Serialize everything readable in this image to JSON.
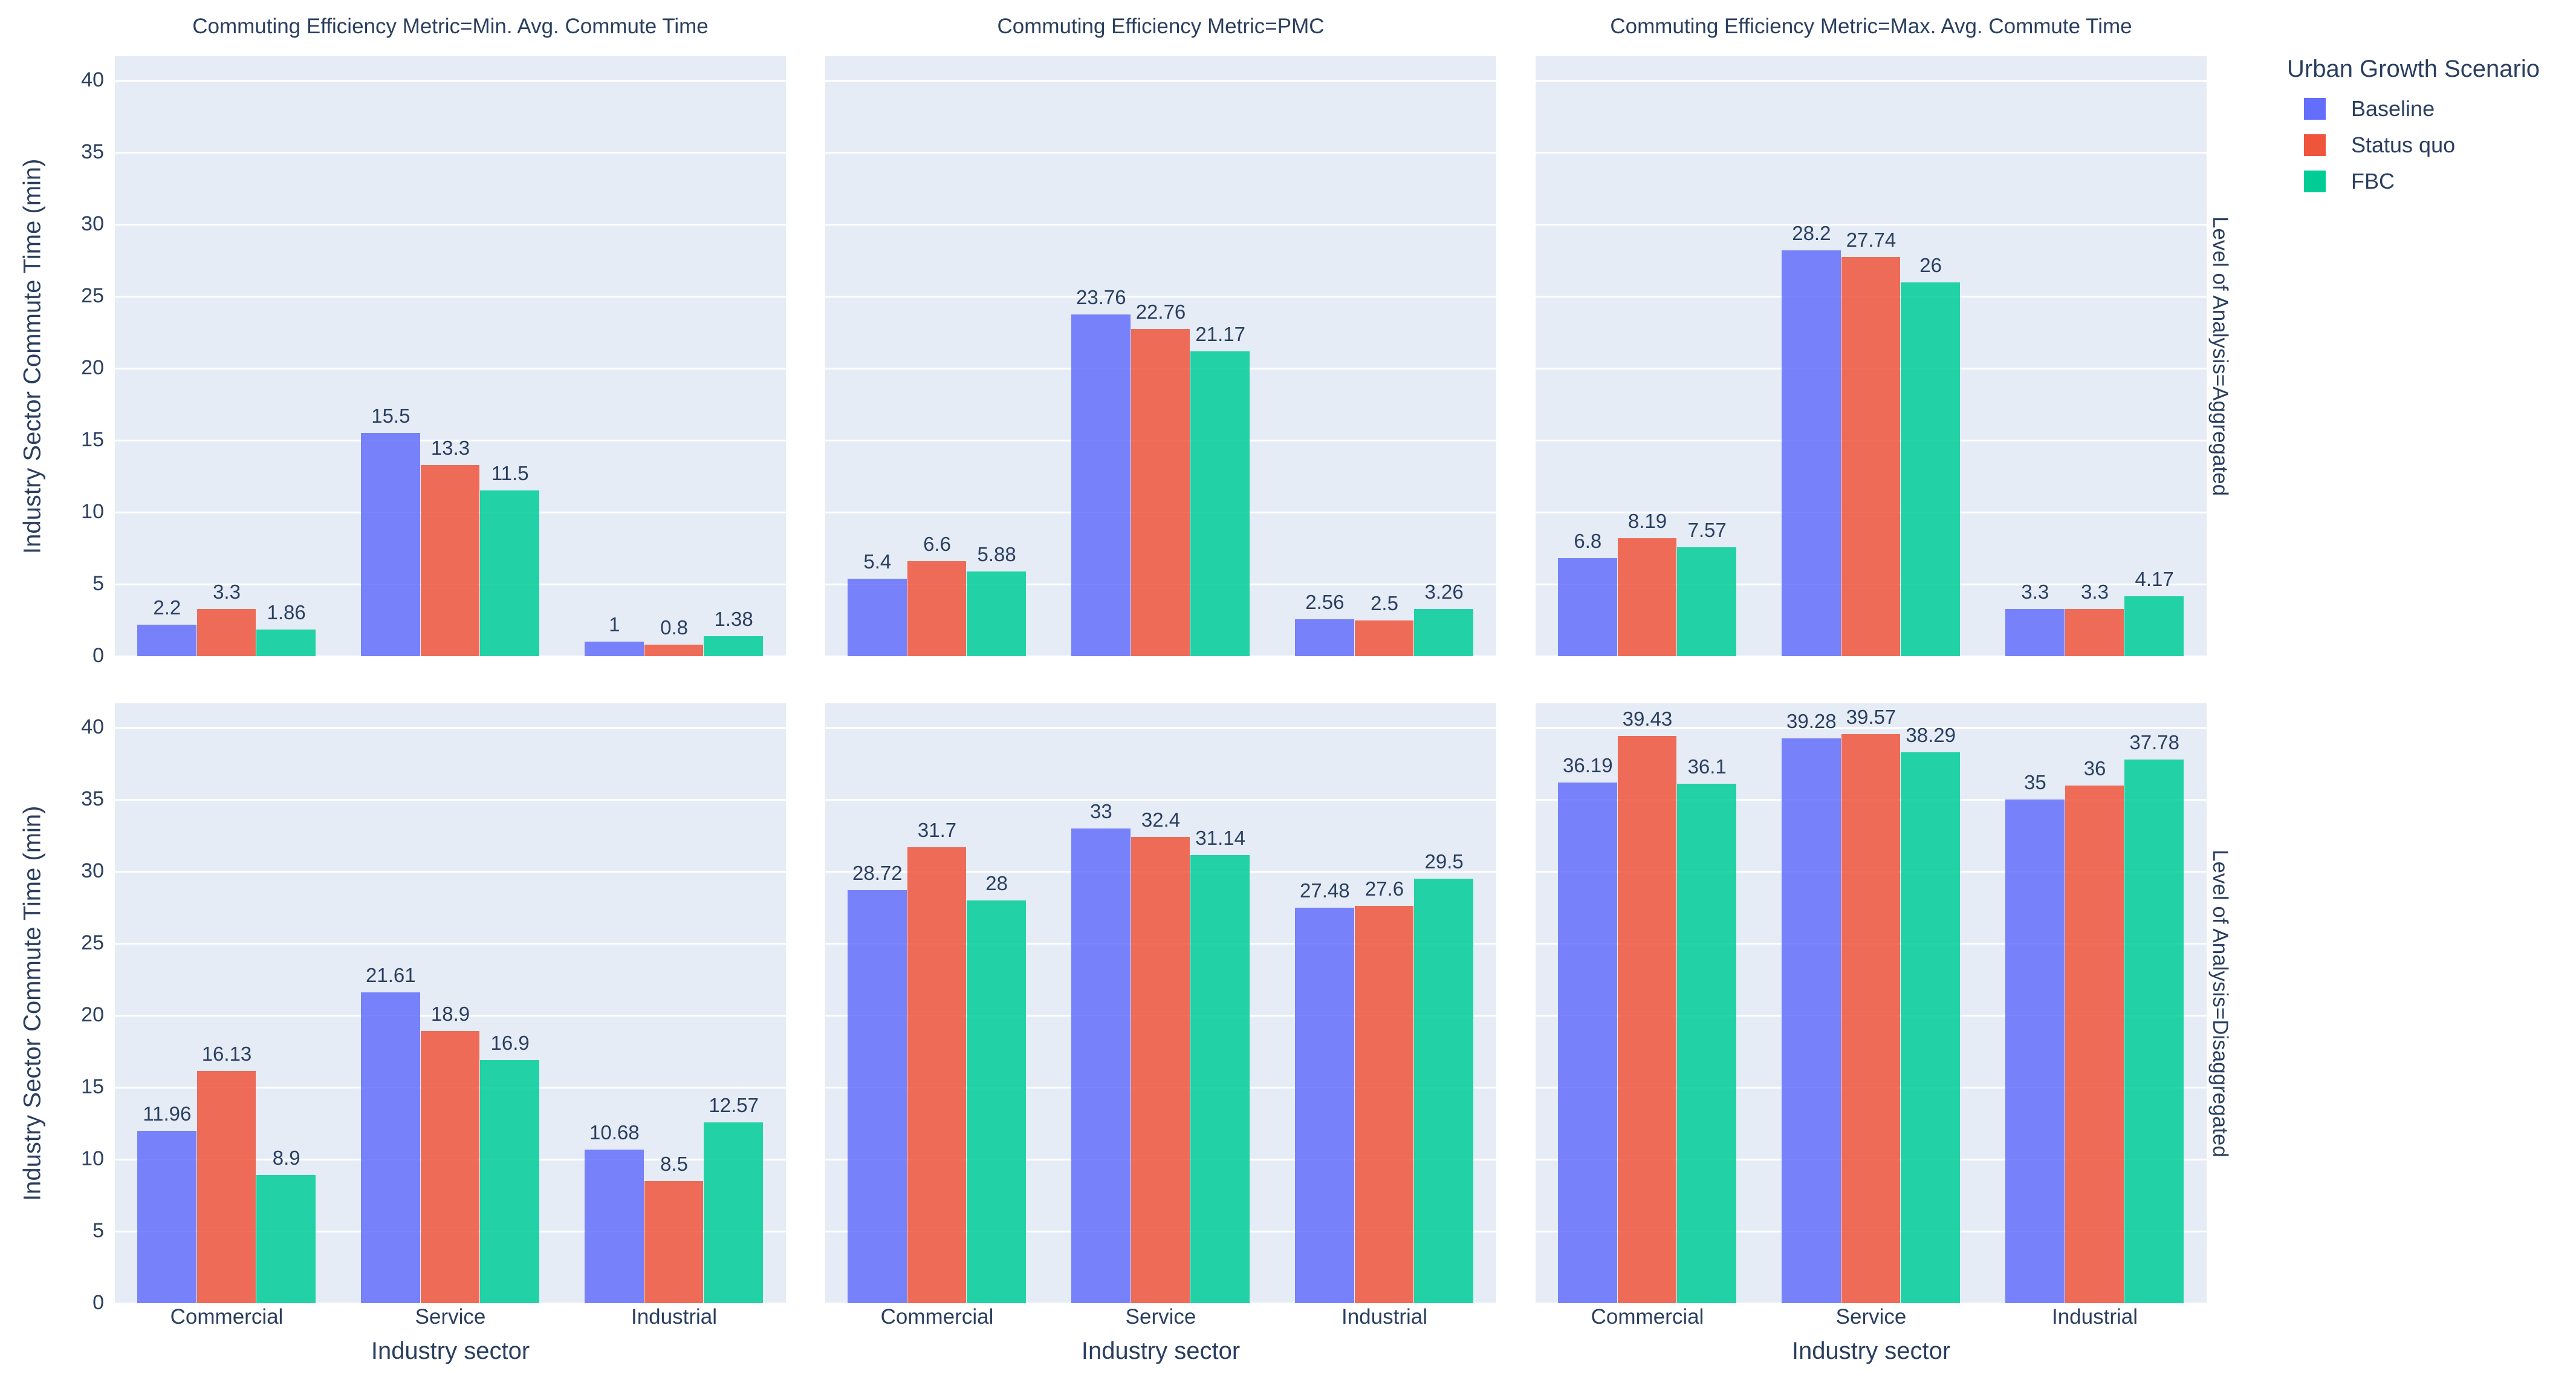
{
  "chart_data": {
    "type": "bar",
    "barmode": "group",
    "title": "",
    "xlabel": "Industry sector",
    "ylabel": "Industry Sector Commute Time (min)",
    "legend_title": "Urban Growth Scenario",
    "legend_position": "top-right",
    "grid": true,
    "categories": [
      "Commercial",
      "Service",
      "Industrial"
    ],
    "series_names": [
      "Baseline",
      "Status quo",
      "FBC"
    ],
    "series_colors": [
      "#636EFA",
      "#EF553B",
      "#00CC96"
    ],
    "plot_bgcolor": "#E5ECF6",
    "grid_color": "#FFFFFF",
    "text_color": "#2a3f5f",
    "yticks": [
      0,
      5,
      10,
      15,
      20,
      25,
      30,
      35,
      40
    ],
    "ylim": [
      0,
      41.7
    ],
    "facet_col_titles": [
      "Commuting Efficiency Metric=Min. Avg. Commute Time",
      "Commuting Efficiency Metric=PMC",
      "Commuting Efficiency Metric=Max. Avg. Commute Time"
    ],
    "facet_row_titles": [
      "Level of Analysis=Aggregated",
      "Level of Analysis=Disaggregated"
    ],
    "subplots": [
      {
        "row": 0,
        "col": 0,
        "row_label": "Aggregated",
        "col_label": "Min. Avg. Commute Time",
        "series": [
          {
            "name": "Baseline",
            "values": [
              2.2,
              15.5,
              1
            ],
            "labels": [
              "2.2",
              "15.5",
              "1"
            ]
          },
          {
            "name": "Status quo",
            "values": [
              3.3,
              13.3,
              0.8
            ],
            "labels": [
              "3.3",
              "13.3",
              "0.8"
            ]
          },
          {
            "name": "FBC",
            "values": [
              1.86,
              11.5,
              1.38
            ],
            "labels": [
              "1.86",
              "11.5",
              "1.38"
            ]
          }
        ]
      },
      {
        "row": 0,
        "col": 1,
        "row_label": "Aggregated",
        "col_label": "PMC",
        "series": [
          {
            "name": "Baseline",
            "values": [
              5.4,
              23.76,
              2.56
            ],
            "labels": [
              "5.4",
              "23.76",
              "2.56"
            ]
          },
          {
            "name": "Status quo",
            "values": [
              6.6,
              22.76,
              2.5
            ],
            "labels": [
              "6.6",
              "22.76",
              "2.5"
            ]
          },
          {
            "name": "FBC",
            "values": [
              5.88,
              21.17,
              3.26
            ],
            "labels": [
              "5.88",
              "21.17",
              "3.26"
            ]
          }
        ]
      },
      {
        "row": 0,
        "col": 2,
        "row_label": "Aggregated",
        "col_label": "Max. Avg. Commute Time",
        "series": [
          {
            "name": "Baseline",
            "values": [
              6.8,
              28.2,
              3.3
            ],
            "labels": [
              "6.8",
              "28.2",
              "3.3"
            ]
          },
          {
            "name": "Status quo",
            "values": [
              8.19,
              27.74,
              3.3
            ],
            "labels": [
              "8.19",
              "27.74",
              "3.3"
            ]
          },
          {
            "name": "FBC",
            "values": [
              7.57,
              26,
              4.17
            ],
            "labels": [
              "7.57",
              "26",
              "4.17"
            ]
          }
        ]
      },
      {
        "row": 1,
        "col": 0,
        "row_label": "Disaggregated",
        "col_label": "Min. Avg. Commute Time",
        "series": [
          {
            "name": "Baseline",
            "values": [
              11.96,
              21.61,
              10.68
            ],
            "labels": [
              "11.96",
              "21.61",
              "10.68"
            ]
          },
          {
            "name": "Status quo",
            "values": [
              16.13,
              18.9,
              8.5
            ],
            "labels": [
              "16.13",
              "18.9",
              "8.5"
            ]
          },
          {
            "name": "FBC",
            "values": [
              8.9,
              16.9,
              12.57
            ],
            "labels": [
              "8.9",
              "16.9",
              "12.57"
            ]
          }
        ]
      },
      {
        "row": 1,
        "col": 1,
        "row_label": "Disaggregated",
        "col_label": "PMC",
        "series": [
          {
            "name": "Baseline",
            "values": [
              28.72,
              33,
              27.48
            ],
            "labels": [
              "28.72",
              "33",
              "27.48"
            ]
          },
          {
            "name": "Status quo",
            "values": [
              31.7,
              32.4,
              27.6
            ],
            "labels": [
              "31.7",
              "32.4",
              "27.6"
            ]
          },
          {
            "name": "FBC",
            "values": [
              28,
              31.14,
              29.5
            ],
            "labels": [
              "28",
              "31.14",
              "29.5"
            ]
          }
        ]
      },
      {
        "row": 1,
        "col": 2,
        "row_label": "Disaggregated",
        "col_label": "Max. Avg. Commute Time",
        "series": [
          {
            "name": "Baseline",
            "values": [
              36.19,
              39.28,
              35
            ],
            "labels": [
              "36.19",
              "39.28",
              "35"
            ]
          },
          {
            "name": "Status quo",
            "values": [
              39.43,
              39.57,
              36
            ],
            "labels": [
              "39.43",
              "39.57",
              "36"
            ]
          },
          {
            "name": "FBC",
            "values": [
              36.1,
              38.29,
              37.78
            ],
            "labels": [
              "36.1",
              "38.29",
              "37.78"
            ]
          }
        ]
      }
    ]
  }
}
